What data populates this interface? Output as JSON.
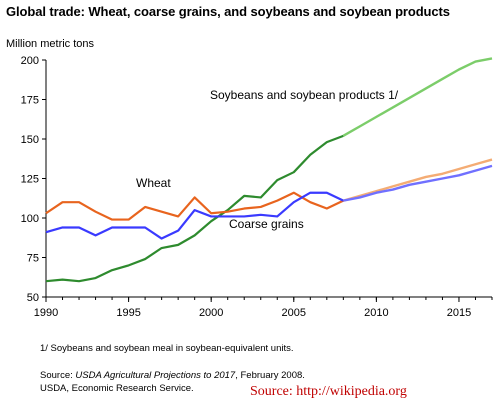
{
  "chart_data": {
    "type": "line",
    "title": "Global trade: Wheat, coarse grains, and soybeans and soybean products",
    "ylabel": "Million metric tons",
    "xlabel": "",
    "xlim": [
      1990,
      2017
    ],
    "ylim": [
      50,
      200
    ],
    "x_ticks": [
      "1990",
      "1995",
      "2000",
      "2005",
      "2010",
      "2015"
    ],
    "y_ticks": [
      "50",
      "75",
      "100",
      "125",
      "150",
      "175",
      "200"
    ],
    "grid": false,
    "legend": "none",
    "historical_end_year": 2008,
    "series": [
      {
        "name": "Soybeans and soybean products 1/",
        "color": "#2e8b2e",
        "projection_color": "#7ccd6a",
        "x": [
          1990,
          1991,
          1992,
          1993,
          1994,
          1995,
          1996,
          1997,
          1998,
          1999,
          2000,
          2001,
          2002,
          2003,
          2004,
          2005,
          2006,
          2007,
          2008,
          2009,
          2010,
          2011,
          2012,
          2013,
          2014,
          2015,
          2016,
          2017
        ],
        "values": [
          60,
          61,
          60,
          62,
          67,
          70,
          74,
          81,
          83,
          89,
          98,
          105,
          114,
          113,
          124,
          129,
          140,
          148,
          152,
          158,
          164,
          170,
          176,
          182,
          188,
          194,
          199,
          201
        ]
      },
      {
        "name": "Wheat",
        "color": "#e8641e",
        "projection_color": "#f4ac74",
        "x": [
          1990,
          1991,
          1992,
          1993,
          1994,
          1995,
          1996,
          1997,
          1998,
          1999,
          2000,
          2001,
          2002,
          2003,
          2004,
          2005,
          2006,
          2007,
          2008,
          2009,
          2010,
          2011,
          2012,
          2013,
          2014,
          2015,
          2016,
          2017
        ],
        "values": [
          103,
          110,
          110,
          104,
          99,
          99,
          107,
          104,
          101,
          113,
          103,
          104,
          106,
          107,
          111,
          116,
          110,
          106,
          111,
          114,
          117,
          120,
          123,
          126,
          128,
          131,
          134,
          137
        ]
      },
      {
        "name": "Coarse grains",
        "color": "#3a3aff",
        "projection_color": "#7070ff",
        "x": [
          1990,
          1991,
          1992,
          1993,
          1994,
          1995,
          1996,
          1997,
          1998,
          1999,
          2000,
          2001,
          2002,
          2003,
          2004,
          2005,
          2006,
          2007,
          2008,
          2009,
          2010,
          2011,
          2012,
          2013,
          2014,
          2015,
          2016,
          2017
        ],
        "values": [
          91,
          94,
          94,
          89,
          94,
          94,
          94,
          87,
          92,
          105,
          101,
          101,
          101,
          102,
          101,
          110,
          116,
          116,
          111,
          113,
          116,
          118,
          121,
          123,
          125,
          127,
          130,
          133
        ]
      }
    ],
    "annotations": {
      "soybean_label": "Soybeans and soybean products 1/",
      "wheat_label": "Wheat",
      "coarse_label": "Coarse grains"
    }
  },
  "notes": {
    "footnote": "1/ Soybeans and soybean meal in soybean-equivalent units.",
    "source_prefix": "Source: ",
    "source_italic": "USDA Agricultural Projections to 2017",
    "source_suffix": ", February 2008.",
    "source_org": "USDA, Economic Research Service.",
    "watermark": "Source: http://wikipedia.org"
  }
}
